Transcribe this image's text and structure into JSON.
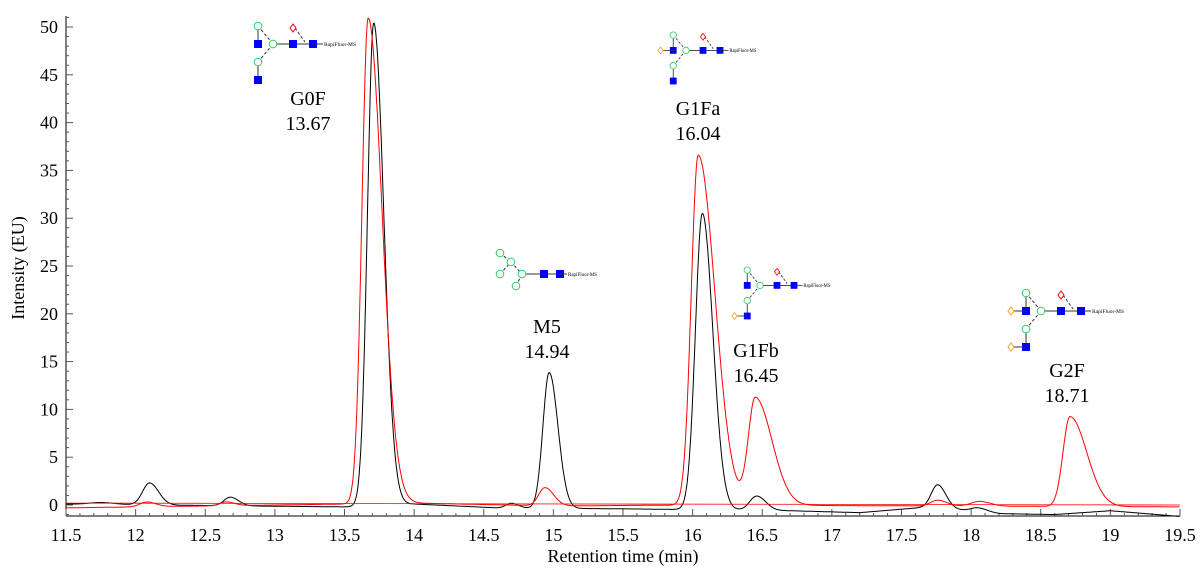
{
  "chart_data": {
    "type": "line",
    "xlabel": "Retention time (min)",
    "ylabel": "Intensity (EU)",
    "xlim": [
      11.5,
      19.5
    ],
    "ylim": [
      -1.2,
      51
    ],
    "xticks": [
      "11.5",
      "12",
      "12.5",
      "13",
      "13.5",
      "14",
      "14.5",
      "15",
      "15.5",
      "16",
      "16.5",
      "17",
      "17.5",
      "18",
      "18.5",
      "19",
      "19.5"
    ],
    "yticks": [
      "0",
      "5",
      "10",
      "15",
      "20",
      "25",
      "30",
      "35",
      "40",
      "45",
      "50"
    ],
    "grid": false,
    "series": [
      {
        "color": "#000000",
        "baseline": [
          [
            11.5,
            0.1
          ],
          [
            13.5,
            -0.2
          ],
          [
            14.0,
            0.1
          ],
          [
            14.6,
            -0.3
          ],
          [
            15.5,
            -0.4
          ],
          [
            16.7,
            -0.6
          ],
          [
            17.2,
            -0.8
          ],
          [
            17.7,
            -0.2
          ],
          [
            18.2,
            -0.9
          ],
          [
            18.6,
            -1.0
          ],
          [
            19.0,
            -0.6
          ],
          [
            19.5,
            -1.2
          ]
        ],
        "peaks": [
          {
            "rt": 11.75,
            "height": 0.2,
            "w": 0.08,
            "tail": 1.2
          },
          {
            "rt": 12.1,
            "height": 2.3,
            "w": 0.05,
            "tail": 1.3
          },
          {
            "rt": 12.68,
            "height": 0.9,
            "w": 0.045,
            "tail": 1.3
          },
          {
            "rt": 13.71,
            "height": 50.5,
            "w": 0.045,
            "tail": 1.6
          },
          {
            "rt": 14.7,
            "height": 0.5,
            "w": 0.04,
            "tail": 1.2
          },
          {
            "rt": 14.97,
            "height": 14.2,
            "w": 0.045,
            "tail": 1.4
          },
          {
            "rt": 16.07,
            "height": 31,
            "w": 0.05,
            "tail": 1.5
          },
          {
            "rt": 16.46,
            "height": 1.5,
            "w": 0.05,
            "tail": 1.3
          },
          {
            "rt": 17.76,
            "height": 2.4,
            "w": 0.045,
            "tail": 1.3
          },
          {
            "rt": 18.05,
            "height": 0.4,
            "w": 0.05,
            "tail": 1.3
          }
        ]
      },
      {
        "color": "#ff0000",
        "baseline": [
          [
            11.5,
            -0.3
          ],
          [
            14.0,
            0.2
          ],
          [
            15.0,
            -0.1
          ],
          [
            16.0,
            0.0
          ],
          [
            19.5,
            -0.2
          ]
        ],
        "peaks": [
          {
            "rt": 12.08,
            "height": 0.5,
            "w": 0.05,
            "tail": 1.3
          },
          {
            "rt": 12.65,
            "height": 0.4,
            "w": 0.045,
            "tail": 1.3
          },
          {
            "rt": 13.67,
            "height": 50.8,
            "w": 0.045,
            "tail": 2.2
          },
          {
            "rt": 14.94,
            "height": 1.9,
            "w": 0.045,
            "tail": 1.4
          },
          {
            "rt": 16.04,
            "height": 36.6,
            "w": 0.05,
            "tail": 2.4
          },
          {
            "rt": 16.45,
            "height": 11.2,
            "w": 0.05,
            "tail": 2.4
          },
          {
            "rt": 17.76,
            "height": 0.6,
            "w": 0.05,
            "tail": 1.3
          },
          {
            "rt": 18.06,
            "height": 0.5,
            "w": 0.06,
            "tail": 1.3
          },
          {
            "rt": 18.71,
            "height": 9.4,
            "w": 0.05,
            "tail": 2.4
          }
        ]
      }
    ],
    "annotations": [
      {
        "name": "G0F",
        "rt": "13.67",
        "glycan": "G0F"
      },
      {
        "name": "M5",
        "rt": "14.94",
        "glycan": "M5"
      },
      {
        "name": "G1Fa",
        "rt": "16.04",
        "glycan": "G1Fa"
      },
      {
        "name": "G1Fb",
        "rt": "16.45",
        "glycan": "G1Fb"
      },
      {
        "name": "G2F",
        "rt": "18.71",
        "glycan": "G2F"
      }
    ],
    "glycan_label": "RapiFluor-MS",
    "colors": {
      "glcnac": "#0000ff",
      "mannose": "#33cc66",
      "galactose": "#f5a623",
      "fucose": "#ff0000"
    }
  }
}
